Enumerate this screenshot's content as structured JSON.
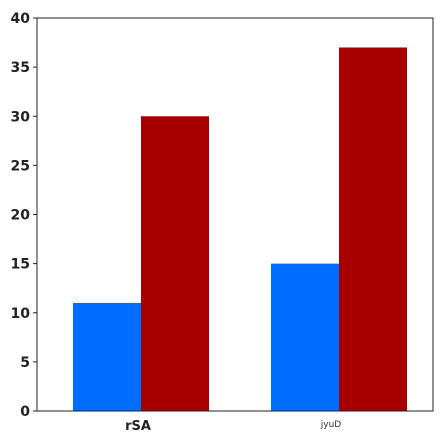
{
  "chart_data": {
    "type": "bar",
    "title": "",
    "xlabel": "",
    "ylabel": "",
    "categories": [
      "rSA",
      "jyuD"
    ],
    "series": [
      {
        "values": [
          11,
          15
        ],
        "color": "#006dff"
      },
      {
        "values": [
          30,
          37
        ],
        "color": "#a80000"
      }
    ],
    "ylim": [
      0,
      40
    ],
    "yticks": [
      0,
      5,
      10,
      15,
      20,
      25,
      30,
      35,
      40
    ],
    "grid": false,
    "legend": "none"
  }
}
